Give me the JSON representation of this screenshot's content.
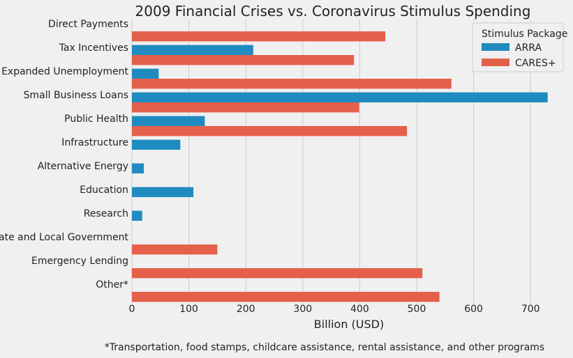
{
  "chart_data": {
    "type": "bar",
    "orientation": "horizontal",
    "title": "2009 Financial Crises vs. Coronavirus Stimulus Spending",
    "xlabel": "Billion (USD)",
    "ylabel": "",
    "xlim": [
      0,
      750
    ],
    "xticks": [
      0,
      100,
      200,
      300,
      400,
      500,
      600,
      700
    ],
    "grid": "vertical",
    "legend": {
      "title": "Stimulus Package",
      "placement": "top-right"
    },
    "categories": [
      "Direct Payments",
      "Tax Incentives",
      "Expanded Unemployment",
      "Small Business Loans",
      "Public Health",
      "Infrastructure",
      "Alternative Energy",
      "Education",
      "Research",
      "State and Local Government",
      "Emergency Lending",
      "Other*"
    ],
    "series": [
      {
        "name": "ARRA",
        "color": "#1f8bc0",
        "values": [
          0,
          213,
          47,
          730,
          128,
          85,
          21,
          108,
          18,
          0,
          0,
          0
        ]
      },
      {
        "name": "CARES+",
        "color": "#e5604a",
        "values": [
          445,
          390,
          561,
          399,
          483,
          0,
          0,
          0,
          0,
          150,
          510,
          540
        ]
      }
    ],
    "footnote": "*Transportation, food stamps, childcare assistance, rental assistance, and other programs"
  }
}
